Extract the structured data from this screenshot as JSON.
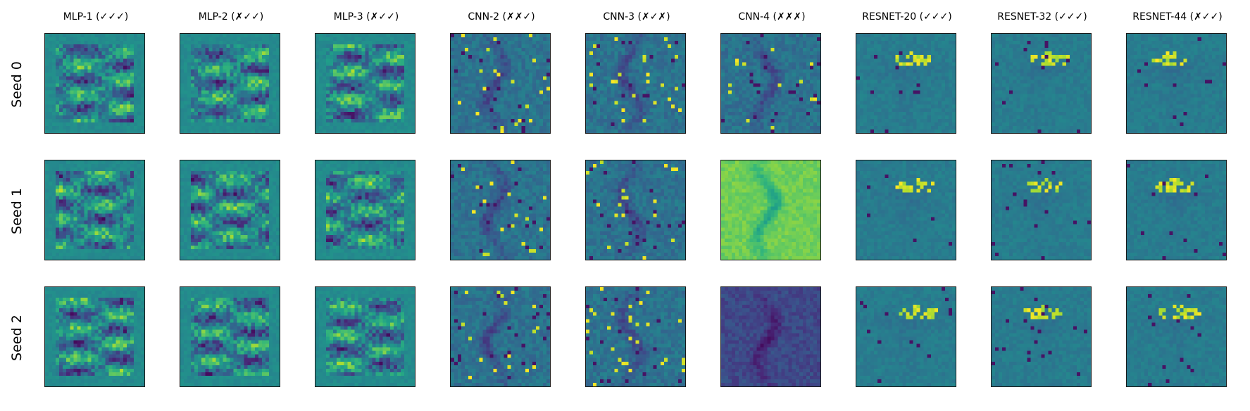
{
  "figure": {
    "columns": [
      {
        "title": "MLP-1 (✓✓✓)",
        "kind": "mlp"
      },
      {
        "title": "MLP-2 (✗✓✓)",
        "kind": "mlp"
      },
      {
        "title": "MLP-3 (✗✓✓)",
        "kind": "mlp"
      },
      {
        "title": "CNN-2 (✗✗✓)",
        "kind": "cnn"
      },
      {
        "title": "CNN-3 (✗✓✗)",
        "kind": "cnn"
      },
      {
        "title": "CNN-4 (✗✗✗)",
        "kind": "cnn"
      },
      {
        "title": "RESNET-20 (✓✓✓)",
        "kind": "resnet"
      },
      {
        "title": "RESNET-32 (✓✓✓)",
        "kind": "resnet"
      },
      {
        "title": "RESNET-44 (✗✓✓)",
        "kind": "resnet"
      }
    ],
    "rows": [
      {
        "label": "Seed 0"
      },
      {
        "label": "Seed 1"
      },
      {
        "label": "Seed 2"
      }
    ],
    "colormap": "viridis",
    "border_color": "#1a1a1a"
  }
}
